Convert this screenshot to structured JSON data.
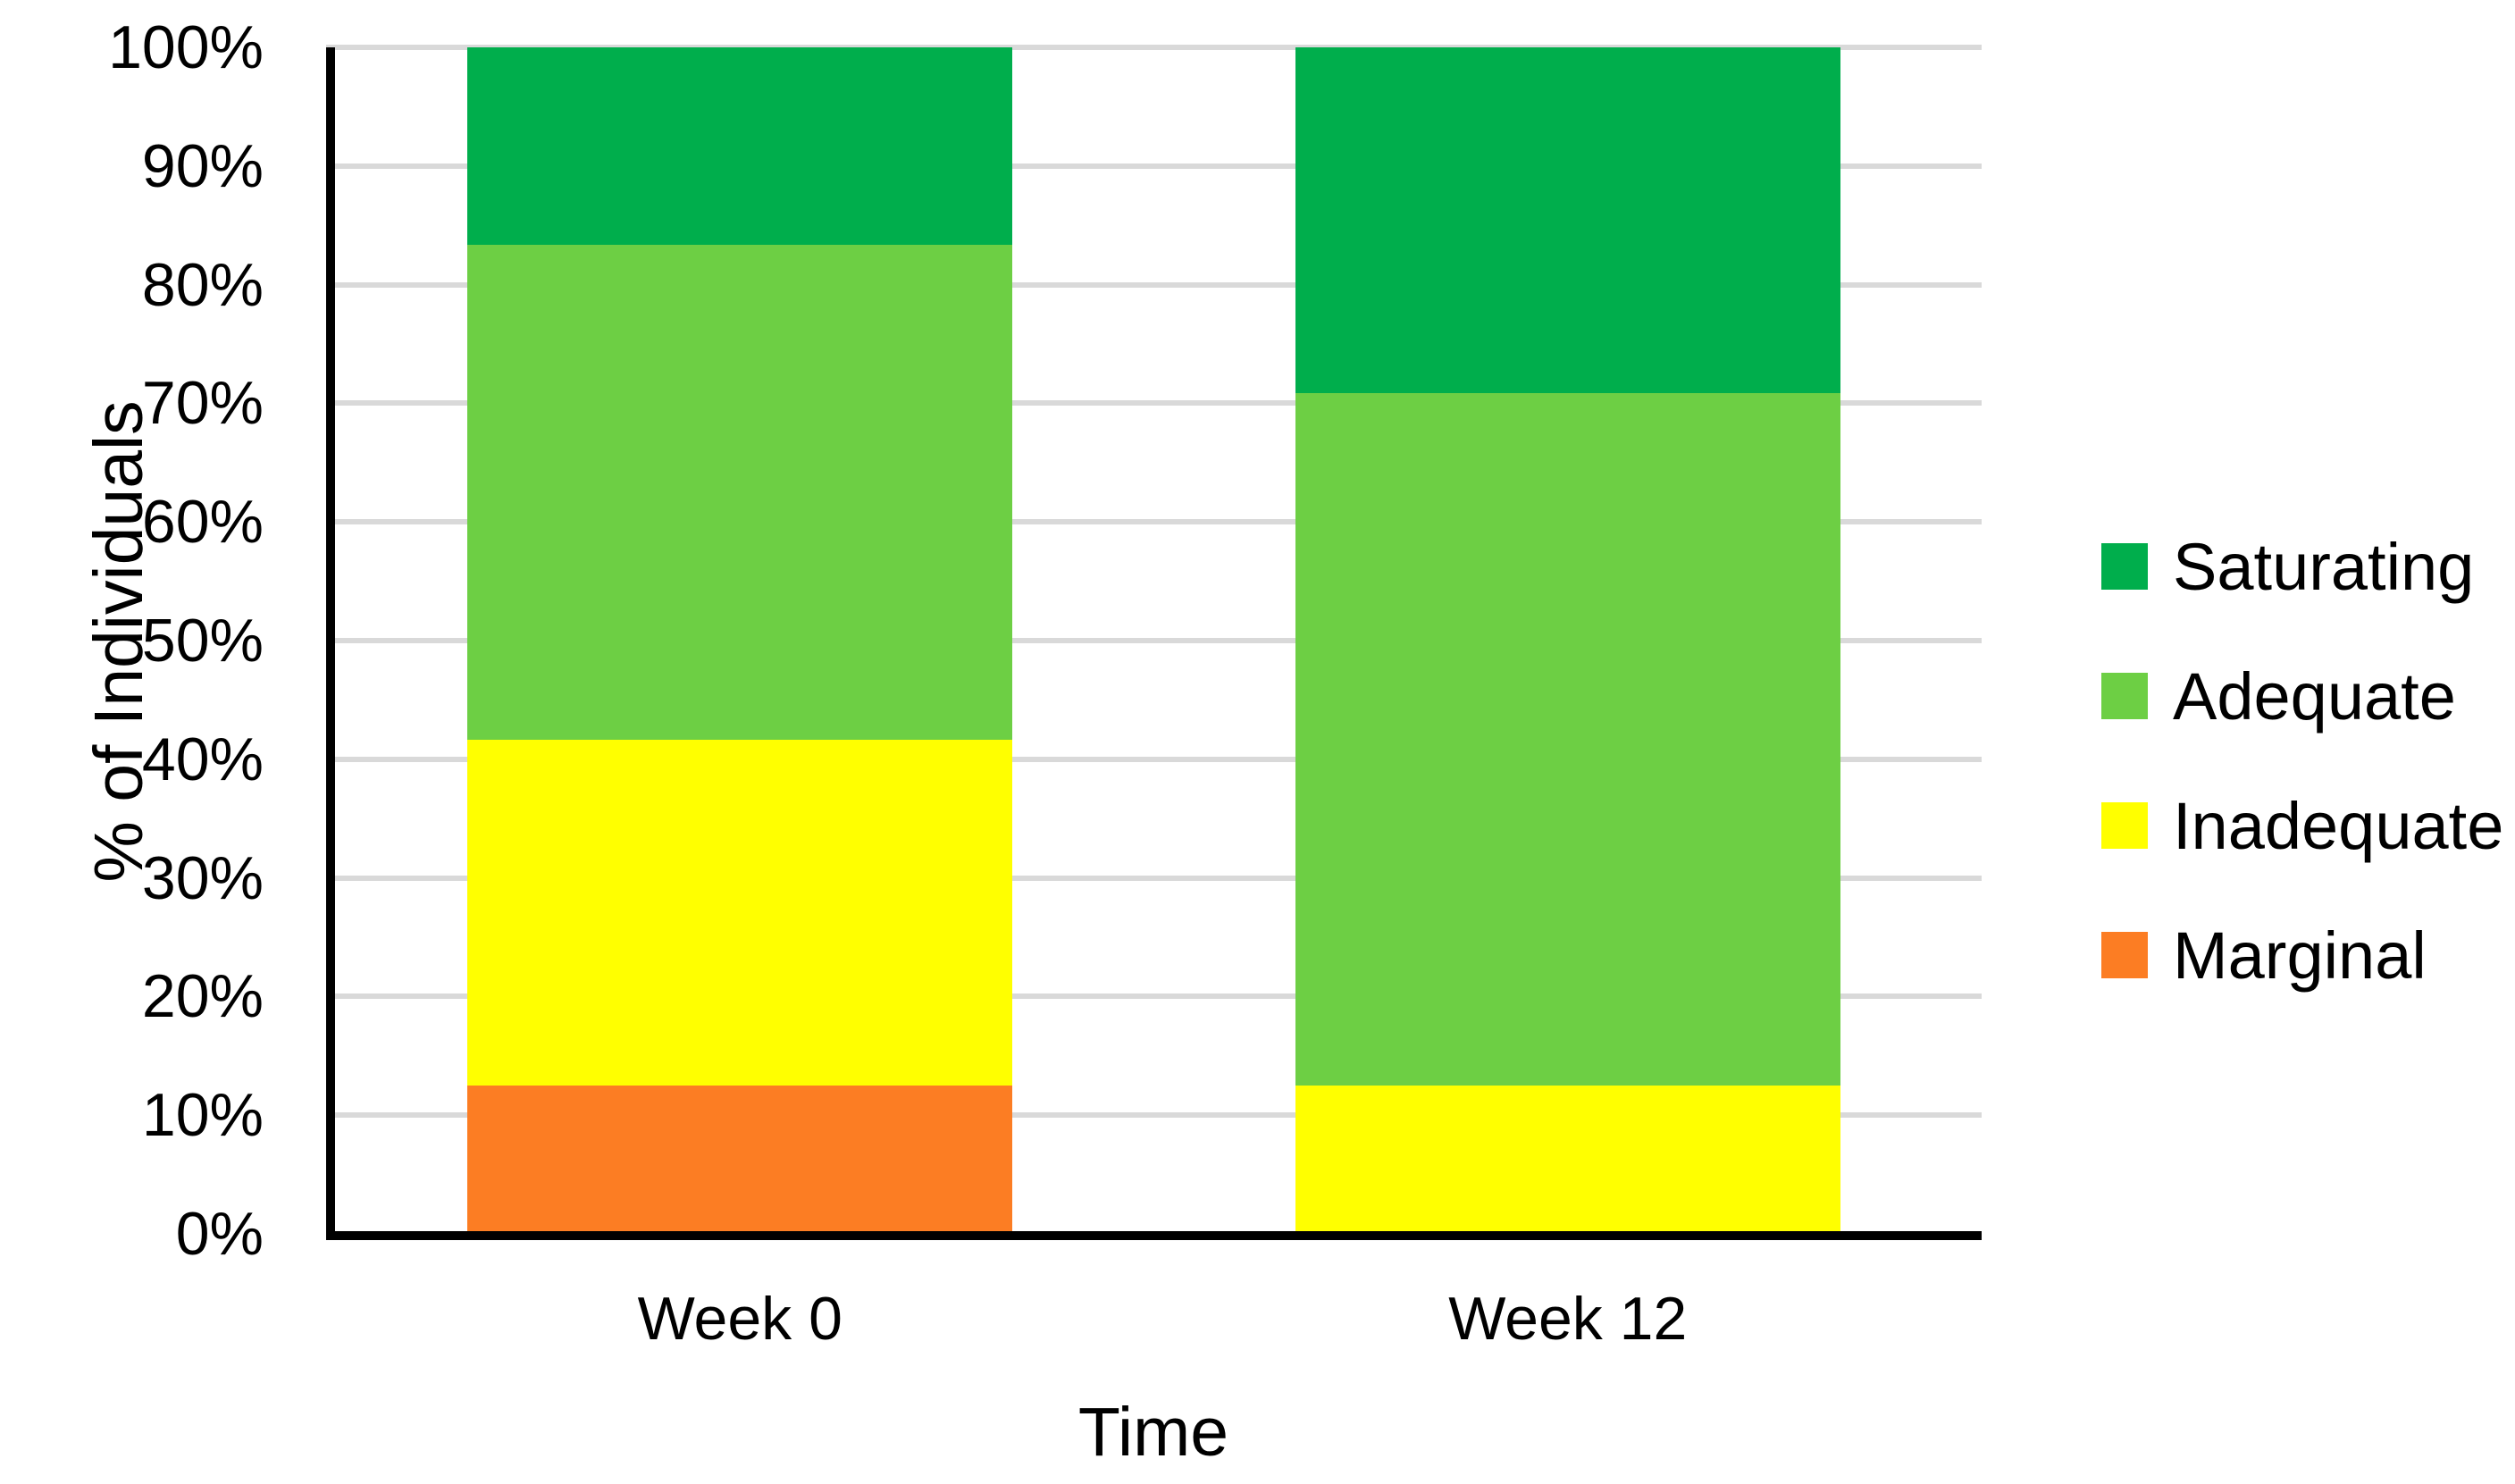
{
  "chart_data": {
    "type": "bar",
    "variant": "stacked-100-percent",
    "title": "",
    "categories": [
      "Week 0",
      "Week 12"
    ],
    "series": [
      {
        "name": "Marginal",
        "color": "#FC7D23",
        "values": [
          12.5,
          0
        ]
      },
      {
        "name": "Inadequate",
        "color": "#FFFF00",
        "values": [
          29.17,
          12.5
        ]
      },
      {
        "name": "Adequate",
        "color": "#6DCF44",
        "values": [
          41.67,
          58.33
        ]
      },
      {
        "name": "Saturating",
        "color": "#00AE4C",
        "values": [
          16.67,
          29.17
        ]
      }
    ],
    "stack_order_bottom_to_top": [
      "Marginal",
      "Inadequate",
      "Adequate",
      "Saturating"
    ],
    "legend": {
      "position": "right",
      "entries_top_to_bottom": [
        "Saturating",
        "Adequate",
        "Inadequate",
        "Marginal"
      ]
    },
    "xlabel": "Time",
    "ylabel": "% of Individuals",
    "ylim": [
      0,
      100
    ],
    "ytick_step": 10,
    "ytick_labels": [
      "0%",
      "10%",
      "20%",
      "30%",
      "40%",
      "50%",
      "60%",
      "70%",
      "80%",
      "90%",
      "100%"
    ],
    "grid": true,
    "gridline_color": "#D9D9D9",
    "axis_color": "#000000",
    "text_color": "#000000",
    "background_color": "#FFFFFF"
  }
}
